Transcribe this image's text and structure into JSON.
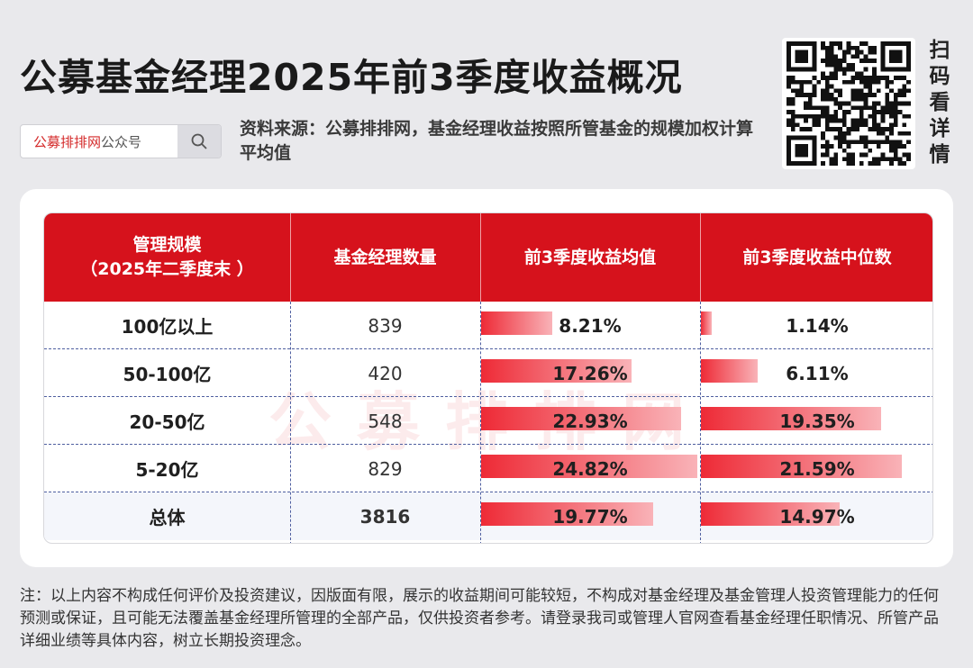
{
  "header": {
    "title": "公募基金经理2025年前3季度收益概况",
    "search_brand": "公募排排网",
    "search_suffix": "公众号",
    "source": "资料来源：公募排排网，基金经理收益按照所管基金的规模加权计算平均值",
    "scan_chars": [
      "扫",
      "码",
      "看",
      "详",
      "情"
    ]
  },
  "chart_data": {
    "type": "table",
    "columns": [
      "管理规模\n（2025年二季度末 ）",
      "基金经理数量",
      "前3季度收益均值",
      "前3季度收益中位数"
    ],
    "rows": [
      {
        "scale": "100亿以上",
        "count": "839",
        "mean": 8.21,
        "mean_label": "8.21%",
        "median": 1.14,
        "median_label": "1.14%"
      },
      {
        "scale": "50-100亿",
        "count": "420",
        "mean": 17.26,
        "mean_label": "17.26%",
        "median": 6.11,
        "median_label": "6.11%"
      },
      {
        "scale": "20-50亿",
        "count": "548",
        "mean": 22.93,
        "mean_label": "22.93%",
        "median": 19.35,
        "median_label": "19.35%"
      },
      {
        "scale": "5-20亿",
        "count": "829",
        "mean": 24.82,
        "mean_label": "24.82%",
        "median": 21.59,
        "median_label": "21.59%"
      },
      {
        "scale": "总体",
        "count": "3816",
        "mean": 19.77,
        "mean_label": "19.77%",
        "median": 14.97,
        "median_label": "14.97%"
      }
    ],
    "bar_color_start": "#ee2a36",
    "bar_color_end": "#f9b3b8",
    "header_color": "#d6121c"
  },
  "watermark": "公募排排网",
  "note": "注：以上内容不构成任何评价及投资建议，因版面有限，展示的收益期间可能较短，不构成对基金经理及基金管理人投资管理能力的任何预测或保证，且可能无法覆盖基金经理所管理的全部产品，仅供投资者参考。请登录我司或管理人官网查看基金经理任职情况、所管产品详细业绩等具体内容，树立长期投资理念。"
}
